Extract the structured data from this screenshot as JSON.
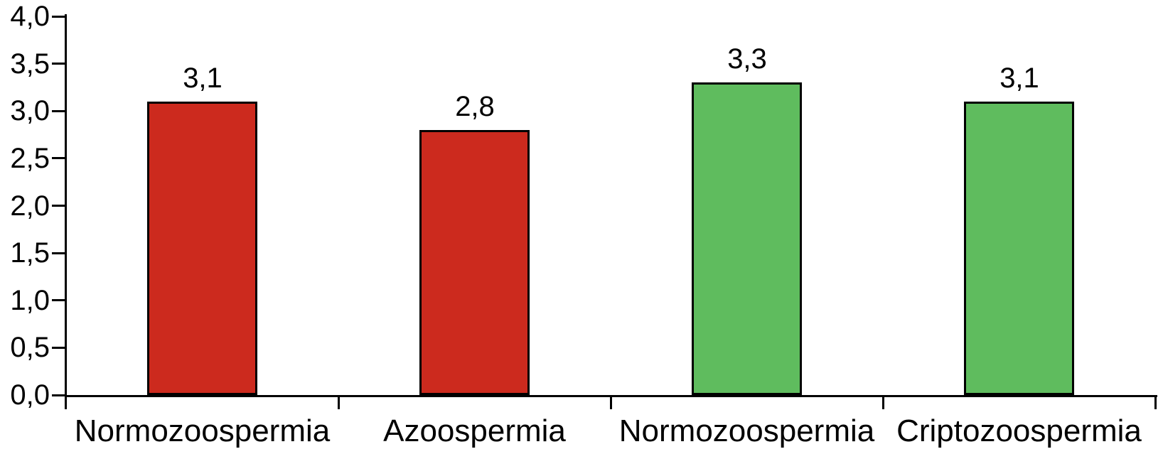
{
  "chart_data": {
    "type": "bar",
    "title": "",
    "xlabel": "",
    "ylabel": "",
    "categories": [
      "Normozoospermia",
      "Azoospermia",
      "Normozoospermia",
      "Criptozoospermia"
    ],
    "values": [
      3.1,
      2.8,
      3.3,
      3.1
    ],
    "value_labels": [
      "3,1",
      "2,8",
      "3,3",
      "3,1"
    ],
    "bar_colors": [
      "#cc2a1e",
      "#cc2a1e",
      "#5fbc5e",
      "#5fbc5e"
    ],
    "bar_border_color": "#000000",
    "axis_color": "#000000",
    "text_color": "#000000",
    "background_color": "#ffffff",
    "ylim": [
      0,
      4
    ],
    "ytick_step": 0.5,
    "ytick_labels": [
      "0,0",
      "0,5",
      "1,0",
      "1,5",
      "2,0",
      "2,5",
      "3,0",
      "3,5",
      "4,0"
    ],
    "decimal_separator": ",",
    "grid": false,
    "legend": "none"
  }
}
